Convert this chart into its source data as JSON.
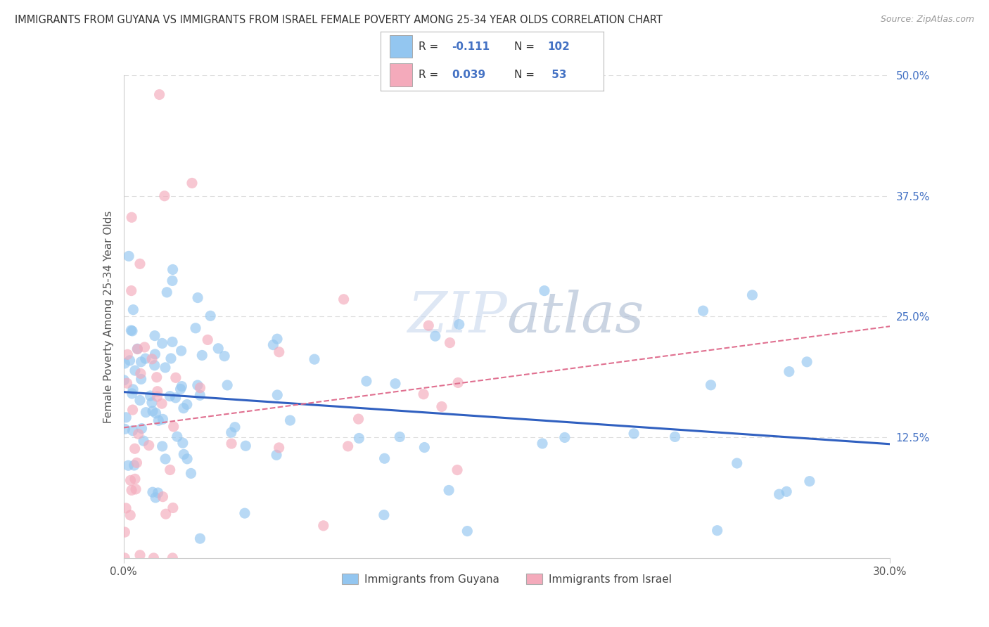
{
  "title": "IMMIGRANTS FROM GUYANA VS IMMIGRANTS FROM ISRAEL FEMALE POVERTY AMONG 25-34 YEAR OLDS CORRELATION CHART",
  "source": "Source: ZipAtlas.com",
  "ylabel": "Female Poverty Among 25-34 Year Olds",
  "xlim": [
    0.0,
    0.3
  ],
  "ylim": [
    0.0,
    0.5
  ],
  "ytick_vals": [
    0.5,
    0.375,
    0.25,
    0.125
  ],
  "ytick_labels": [
    "50.0%",
    "37.5%",
    "25.0%",
    "12.5%"
  ],
  "background_color": "#ffffff",
  "grid_color": "#dddddd",
  "color_guyana": "#93C6F0",
  "color_israel": "#F4AABB",
  "line_color_guyana": "#3060C0",
  "line_color_israel": "#E07090",
  "legend_r1": "-0.111",
  "legend_n1": "102",
  "legend_r2": "0.039",
  "legend_n2": " 53",
  "guyana_intercept": 0.172,
  "guyana_slope": -0.18,
  "israel_intercept": 0.135,
  "israel_slope": 0.35
}
